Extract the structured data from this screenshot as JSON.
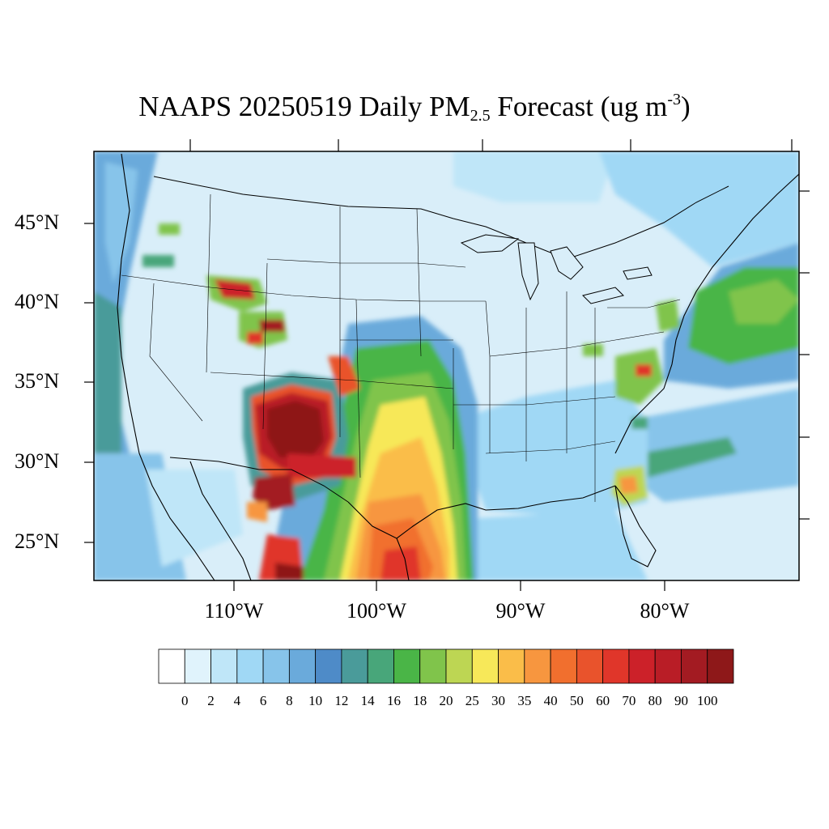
{
  "title": {
    "main": "NAAPS 20250519 Daily PM",
    "sub": "2.5",
    "mid": " Forecast (ug m",
    "sup": "-3",
    "end": ")"
  },
  "map": {
    "region": "Contiguous United States",
    "projection": "Lambert conformal",
    "lat_labels": [
      "45°N",
      "40°N",
      "35°N",
      "30°N",
      "25°N"
    ],
    "lon_labels": [
      "110°W",
      "100°W",
      "90°W",
      "80°W"
    ],
    "background_color": "#d9eef9",
    "plumes": [
      {
        "area": "Southwestern New Mexico / Arizona border",
        "level": "80-100"
      },
      {
        "area": "Chihuahua, Mexico",
        "level": "80-100"
      },
      {
        "area": "Southern Texas / Northeastern Mexico",
        "level": "35-70"
      },
      {
        "area": "Central Texas to Oklahoma corridor",
        "level": "16-30"
      },
      {
        "area": "Northern Utah / Southern Wyoming",
        "level": "60-90"
      },
      {
        "area": "Northwestern Colorado",
        "level": "60-90"
      },
      {
        "area": "Southeastern Colorado",
        "level": "35-60"
      },
      {
        "area": "Georgia / Florida",
        "level": "25-40"
      },
      {
        "area": "Virginia / Mid-Atlantic",
        "level": "20-40"
      },
      {
        "area": "Western Atlantic offshore",
        "level": "14-20"
      }
    ]
  },
  "colorbar": {
    "labels": [
      "0",
      "2",
      "4",
      "6",
      "8",
      "10",
      "12",
      "14",
      "16",
      "18",
      "20",
      "25",
      "30",
      "35",
      "40",
      "50",
      "60",
      "70",
      "80",
      "90",
      "100"
    ],
    "colors": [
      "#ffffff",
      "#e0f3fc",
      "#bfe6f8",
      "#a0d8f5",
      "#87c4ea",
      "#6aaadb",
      "#4e8bc8",
      "#4a9b9a",
      "#48a67a",
      "#4ab547",
      "#80c44b",
      "#bdd653",
      "#f7e859",
      "#fabd49",
      "#f7963f",
      "#f16f2e",
      "#e9532c",
      "#e0362a",
      "#cc2129",
      "#b91d26",
      "#a31b22",
      "#8e1819"
    ]
  }
}
